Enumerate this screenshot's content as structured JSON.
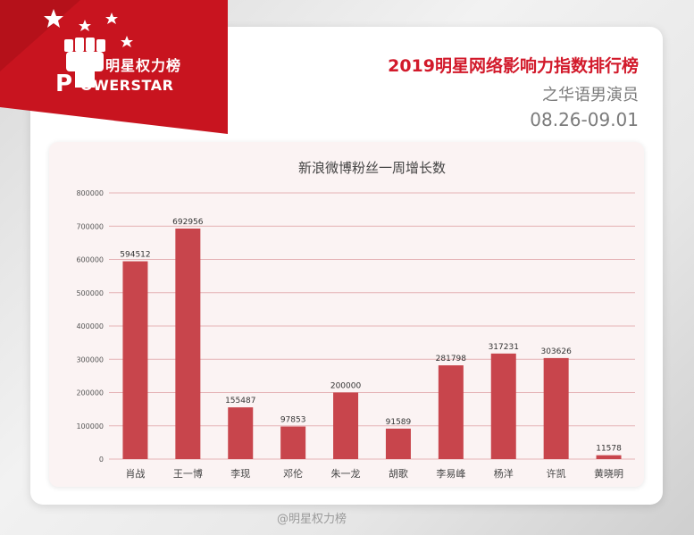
{
  "header": {
    "brand_cn": "明星权力榜",
    "brand_en": "OWERSTAR",
    "title": "2019明星网络影响力指数排行榜",
    "subtitle": "之华语男演员",
    "date_range": "08.26-09.01"
  },
  "colors": {
    "brand_red": "#d21a2b",
    "bar_fill": "#c8454c",
    "panel_bg": "#fbf3f3",
    "grid": "#e5b3b6"
  },
  "chart_data": {
    "type": "bar",
    "title": "新浪微博粉丝一周增长数",
    "categories": [
      "肖战",
      "王一博",
      "李现",
      "邓伦",
      "朱一龙",
      "胡歌",
      "李易峰",
      "杨洋",
      "许凯",
      "黄晓明"
    ],
    "values": [
      594512,
      692956,
      155487,
      97853,
      200000,
      91589,
      281798,
      317231,
      303626,
      11578
    ],
    "data_labels": [
      "594512",
      "692956",
      "155487",
      "97853",
      "200000",
      "91589",
      "281798",
      "317231",
      "303626",
      "11578"
    ],
    "ylim": [
      0,
      800000
    ],
    "yticks": [
      "0",
      "100000",
      "200000",
      "300000",
      "400000",
      "500000",
      "600000",
      "700000",
      "800000"
    ],
    "xlabel": "",
    "ylabel": "",
    "grid": true
  },
  "watermark": "@明星权力榜"
}
